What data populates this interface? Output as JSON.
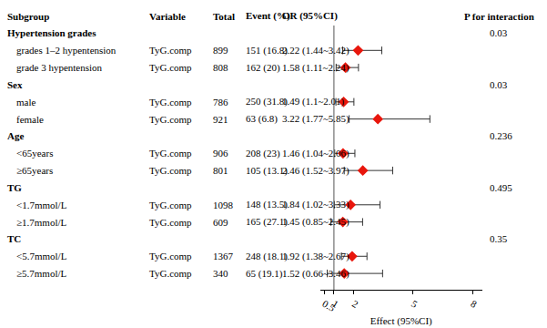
{
  "chart_data": {
    "type": "forest",
    "columns": {
      "subgroup": "Subgroup",
      "variable": "Variable",
      "total": "Total",
      "event": "Event (%)",
      "or": "OR (95%CI)",
      "p": "P for interaction"
    },
    "xlabel": "Effect (95%CI)",
    "xlim": [
      0.3,
      8.5
    ],
    "xticks": [
      0.5,
      1,
      2,
      5,
      8
    ],
    "reference": 1,
    "color": "#e8160c",
    "groups": [
      {
        "name": "Hypertension grades",
        "p": 0.03,
        "rows": [
          {
            "label": "grades 1–2 hypentension",
            "variable": "TyG.comp",
            "total": 899,
            "event": "151 (16.8)",
            "or_text": "2.22 (1.44~3.42)",
            "or": 2.22,
            "lo": 1.44,
            "hi": 3.42
          },
          {
            "label": "grade 3 hypentension",
            "variable": "TyG.comp",
            "total": 808,
            "event": "162 (20)",
            "or_text": "1.58 (1.11~2.24)",
            "or": 1.58,
            "lo": 1.11,
            "hi": 2.24
          }
        ]
      },
      {
        "name": "Sex",
        "p": 0.03,
        "rows": [
          {
            "label": "male",
            "variable": "TyG.comp",
            "total": 786,
            "event": "250 (31.8)",
            "or_text": "1.49 (1.1~2.01)",
            "or": 1.49,
            "lo": 1.1,
            "hi": 2.01
          },
          {
            "label": "female",
            "variable": "TyG.comp",
            "total": 921,
            "event": "63 (6.8)",
            "or_text": "3.22 (1.77~5.85)",
            "or": 3.22,
            "lo": 1.77,
            "hi": 5.85
          }
        ]
      },
      {
        "name": "Age",
        "p": 0.236,
        "rows": [
          {
            "label": "<65years",
            "variable": "TyG.comp",
            "total": 906,
            "event": "208 (23)",
            "or_text": "1.46 (1.04~2.06)",
            "or": 1.46,
            "lo": 1.04,
            "hi": 2.06
          },
          {
            "label": "≥65years",
            "variable": "TyG.comp",
            "total": 801,
            "event": "105 (13.1)",
            "or_text": "2.46 (1.52~3.97)",
            "or": 2.46,
            "lo": 1.52,
            "hi": 3.97
          }
        ]
      },
      {
        "name": "TG",
        "p": 0.495,
        "rows": [
          {
            "label": "<1.7mmol/L",
            "variable": "TyG.comp",
            "total": 1098,
            "event": "148 (13.5)",
            "or_text": "1.84 (1.02~3.33)",
            "or": 1.84,
            "lo": 1.02,
            "hi": 3.33
          },
          {
            "label": "≥1.7mmol/L",
            "variable": "TyG.comp",
            "total": 609,
            "event": "165 (27.1)",
            "or_text": "1.45 (0.85~2.45)",
            "or": 1.45,
            "lo": 0.85,
            "hi": 2.45
          }
        ]
      },
      {
        "name": "TC",
        "p": 0.35,
        "rows": [
          {
            "label": "<5.7mmol/L",
            "variable": "TyG.comp",
            "total": 1367,
            "event": "248 (18.1)",
            "or_text": "1.92 (1.38~2.67)",
            "or": 1.92,
            "lo": 1.38,
            "hi": 2.67
          },
          {
            "label": "≥5.7mmol/L",
            "variable": "TyG.comp",
            "total": 340,
            "event": "65 (19.1)",
            "or_text": "1.52 (0.66~3.46)",
            "or": 1.52,
            "lo": 0.66,
            "hi": 3.46
          }
        ]
      }
    ]
  }
}
